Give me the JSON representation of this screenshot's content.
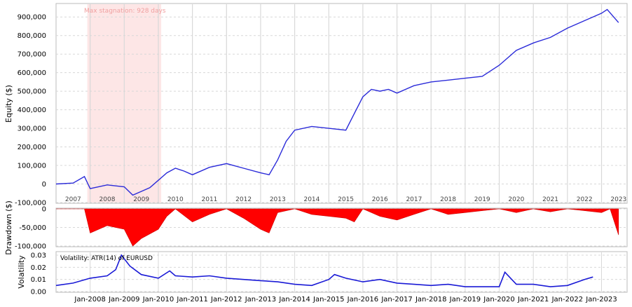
{
  "colors": {
    "equity_line": "#2b2bd9",
    "drawdown_fill": "#ff0000",
    "volatility_line": "#1a1ad6",
    "stagnation_band": "#fde6e6",
    "stagnation_text": "#f0a0a0",
    "grid": "#d8d8d8"
  },
  "chart_data": [
    {
      "type": "line",
      "ylabel": "Equity ($)",
      "ylim": [
        -100000,
        950000
      ],
      "yticks": [
        "900,000",
        "800,000",
        "700,000",
        "600,000",
        "500,000",
        "400,000",
        "300,000",
        "200,000",
        "100,000",
        "0",
        "-100,000"
      ],
      "year_labels": [
        "2007",
        "2008",
        "2009",
        "2010",
        "2011",
        "2012",
        "2013",
        "2014",
        "2015",
        "2016",
        "2017",
        "2018",
        "2019",
        "2020",
        "2021",
        "2022",
        "2023"
      ],
      "annotation": "Max stagnation: 928 days",
      "stagnation_period": [
        "2007-12",
        "2010-02"
      ],
      "series": [
        {
          "x": [
            "2007-01",
            "2007-07",
            "2007-11",
            "2008-01",
            "2008-07",
            "2009-01",
            "2009-04",
            "2009-07",
            "2009-10",
            "2010-01",
            "2010-04",
            "2010-07",
            "2010-10",
            "2011-01",
            "2011-07",
            "2012-01",
            "2012-07",
            "2013-01",
            "2013-04",
            "2013-07",
            "2013-10",
            "2014-01",
            "2014-07",
            "2015-01",
            "2015-07",
            "2015-10",
            "2016-01",
            "2016-04",
            "2016-07",
            "2016-10",
            "2017-01",
            "2017-07",
            "2018-01",
            "2018-07",
            "2019-01",
            "2019-07",
            "2020-01",
            "2020-07",
            "2021-01",
            "2021-07",
            "2022-01",
            "2022-07",
            "2023-01",
            "2023-03",
            "2023-07"
          ],
          "y": [
            0,
            5000,
            40000,
            -25000,
            -5000,
            -15000,
            -60000,
            -40000,
            -20000,
            20000,
            60000,
            85000,
            70000,
            50000,
            90000,
            110000,
            85000,
            60000,
            50000,
            130000,
            230000,
            290000,
            310000,
            300000,
            290000,
            380000,
            470000,
            510000,
            500000,
            510000,
            490000,
            530000,
            550000,
            560000,
            570000,
            580000,
            640000,
            720000,
            760000,
            790000,
            840000,
            880000,
            920000,
            940000,
            870000
          ]
        }
      ]
    },
    {
      "type": "area",
      "ylabel": "Drawdown ($)",
      "ylim": [
        -100000,
        0
      ],
      "yticks": [
        "0",
        "-50,000",
        "-100,000"
      ],
      "series": [
        {
          "x": [
            "2007-01",
            "2007-11",
            "2008-01",
            "2008-07",
            "2009-01",
            "2009-04",
            "2009-07",
            "2010-01",
            "2010-04",
            "2010-07",
            "2011-01",
            "2011-07",
            "2012-01",
            "2012-07",
            "2013-01",
            "2013-04",
            "2013-07",
            "2014-01",
            "2014-07",
            "2015-01",
            "2015-07",
            "2015-10",
            "2016-01",
            "2016-07",
            "2017-01",
            "2017-07",
            "2018-01",
            "2018-07",
            "2019-01",
            "2019-07",
            "2020-01",
            "2020-07",
            "2021-01",
            "2021-07",
            "2022-01",
            "2022-07",
            "2023-01",
            "2023-04",
            "2023-07"
          ],
          "y": [
            0,
            0,
            -65000,
            -45000,
            -55000,
            -100000,
            -80000,
            -55000,
            -20000,
            0,
            -35000,
            -15000,
            0,
            -25000,
            -55000,
            -65000,
            -10000,
            0,
            -15000,
            -20000,
            -25000,
            -35000,
            0,
            -20000,
            -30000,
            -15000,
            0,
            -15000,
            -10000,
            -5000,
            0,
            -10000,
            0,
            -8000,
            0,
            -5000,
            -10000,
            0,
            -70000
          ]
        }
      ]
    },
    {
      "type": "line",
      "ylabel": "Volatility",
      "ylim": [
        0,
        0.03
      ],
      "yticks": [
        "0.03",
        "0.02",
        "0.01",
        "0.00"
      ],
      "legend": "Volatility: ATR(14) of EURUSD",
      "xticks": [
        "Jan-2008",
        "Jan-2009",
        "Jan-2010",
        "Jan-2011",
        "Jan-2012",
        "Jan-2013",
        "Jan-2014",
        "Jan-2015",
        "Jan-2016",
        "Jan-2017",
        "Jan-2018",
        "Jan-2019",
        "Jan-2020",
        "Jan-2021",
        "Jan-2022",
        "Jan-2023"
      ],
      "series": [
        {
          "name": "ATR(14) of EURUSD",
          "x": [
            "2007-01",
            "2007-07",
            "2008-01",
            "2008-07",
            "2008-10",
            "2008-12",
            "2009-03",
            "2009-07",
            "2010-01",
            "2010-05",
            "2010-07",
            "2011-01",
            "2011-07",
            "2012-01",
            "2012-07",
            "2013-01",
            "2013-07",
            "2014-01",
            "2014-07",
            "2015-01",
            "2015-03",
            "2015-07",
            "2016-01",
            "2016-07",
            "2017-01",
            "2017-07",
            "2018-01",
            "2018-07",
            "2019-01",
            "2019-07",
            "2020-01",
            "2020-03",
            "2020-07",
            "2021-01",
            "2021-07",
            "2022-01",
            "2022-07",
            "2022-10"
          ],
          "y": [
            0.005,
            0.007,
            0.011,
            0.013,
            0.018,
            0.03,
            0.021,
            0.014,
            0.011,
            0.017,
            0.013,
            0.012,
            0.013,
            0.011,
            0.01,
            0.009,
            0.008,
            0.006,
            0.005,
            0.01,
            0.014,
            0.011,
            0.008,
            0.01,
            0.007,
            0.006,
            0.005,
            0.006,
            0.004,
            0.004,
            0.004,
            0.016,
            0.006,
            0.006,
            0.004,
            0.005,
            0.01,
            0.012
          ]
        }
      ]
    }
  ]
}
